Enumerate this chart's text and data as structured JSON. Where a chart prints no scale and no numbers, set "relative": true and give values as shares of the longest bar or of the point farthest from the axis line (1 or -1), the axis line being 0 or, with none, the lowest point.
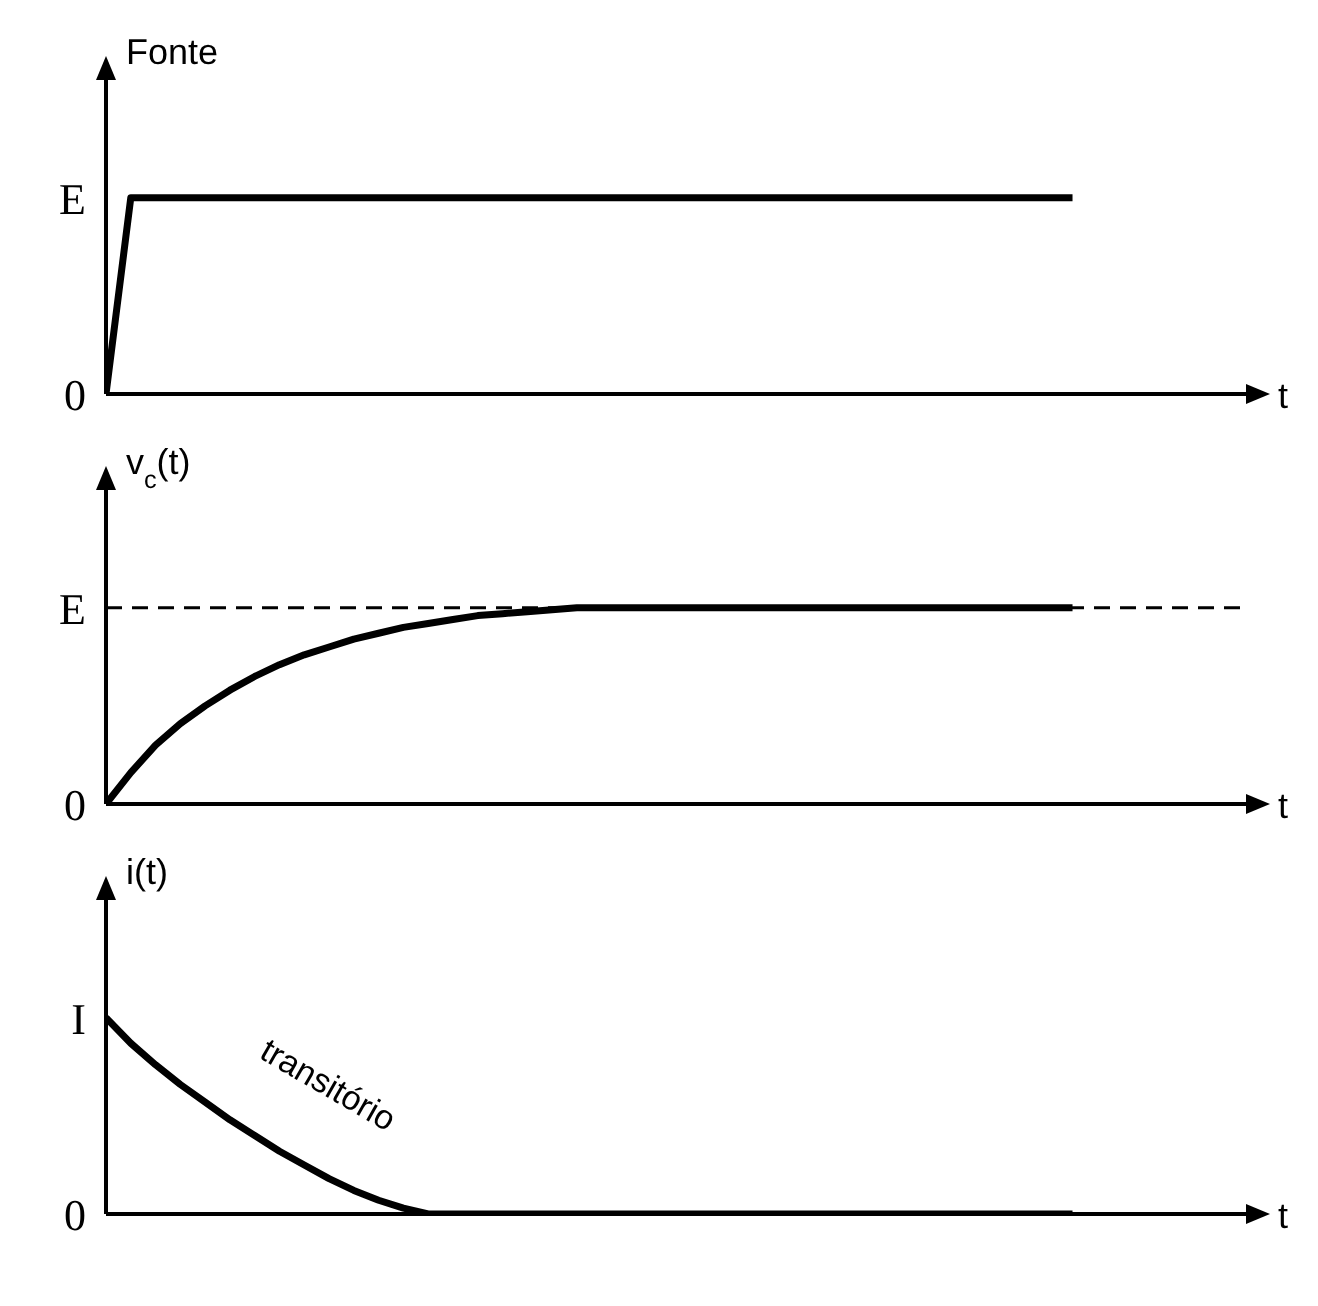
{
  "chart_data": [
    {
      "type": "line",
      "relative": true,
      "ylabel": "Fonte",
      "xlabel": "t",
      "categories": [
        null,
        null,
        null,
        null,
        null,
        null,
        null,
        null,
        null,
        null,
        null,
        null,
        null,
        null,
        null,
        null,
        null,
        null,
        null,
        null,
        null,
        null,
        null,
        null,
        null,
        null,
        null,
        null,
        null,
        null,
        null,
        null,
        null,
        null,
        null,
        null,
        null,
        null,
        null,
        null,
        null,
        null,
        null,
        null,
        null,
        null,
        null
      ],
      "values": [
        0,
        1,
        1,
        1,
        1,
        1,
        1,
        1,
        1,
        1,
        1,
        1,
        1,
        1,
        1,
        1,
        1,
        1,
        1,
        1,
        1,
        1,
        1,
        1,
        1,
        1,
        1,
        1,
        1,
        1,
        1,
        1,
        1,
        1,
        1,
        1,
        1,
        1,
        1,
        1,
        null,
        null,
        null,
        null,
        null,
        null,
        null
      ],
      "color": "#000000",
      "annotations": [
        "E",
        "0"
      ]
    },
    {
      "type": "line",
      "relative": true,
      "ylabel": "v$_{c}$(t)",
      "xlabel": "t",
      "categories": [
        null,
        null,
        null,
        null,
        null,
        null,
        null,
        null,
        null,
        null,
        null,
        null,
        null,
        null,
        null,
        null,
        null,
        null,
        null,
        null,
        null,
        null,
        null,
        null,
        null,
        null,
        null,
        null,
        null,
        null,
        null,
        null,
        null,
        null,
        null,
        null,
        null,
        null,
        null,
        null,
        null,
        null,
        null,
        null,
        null,
        null,
        null
      ],
      "values": [
        0,
        0.16,
        0.3,
        0.41,
        0.5,
        0.58,
        0.65,
        0.71,
        0.76,
        0.8,
        0.84,
        0.87,
        0.9,
        0.92,
        0.94,
        0.96,
        0.97,
        0.98,
        0.99,
        1,
        1,
        1,
        1,
        1,
        1,
        1,
        1,
        1,
        1,
        1,
        1,
        1,
        1,
        1,
        1,
        1,
        1,
        1,
        1,
        1,
        null,
        null,
        null,
        null,
        null,
        null,
        null
      ],
      "color": "#000000",
      "ref_lines": [
        {
          "axis": "y",
          "value": 1,
          "line_style": "dashed",
          "color": "#000000"
        }
      ],
      "annotations": [
        "E",
        "0"
      ]
    },
    {
      "type": "line",
      "relative": true,
      "ylabel": "i(t)",
      "xlabel": "t",
      "categories": [
        null,
        null,
        null,
        null,
        null,
        null,
        null,
        null,
        null,
        null,
        null,
        null,
        null,
        null,
        null,
        null,
        null,
        null,
        null,
        null,
        null,
        null,
        null,
        null,
        null,
        null,
        null,
        null,
        null,
        null,
        null,
        null,
        null,
        null,
        null,
        null,
        null,
        null,
        null,
        null,
        null,
        null,
        null,
        null,
        null,
        null,
        null
      ],
      "values": [
        1,
        0.87,
        0.76,
        0.66,
        0.57,
        0.48,
        0.4,
        0.32,
        0.25,
        0.18,
        0.12,
        0.07,
        0.03,
        0,
        0,
        0,
        0,
        0,
        0,
        0,
        0,
        0,
        0,
        0,
        0,
        0,
        0,
        0,
        0,
        0,
        0,
        0,
        0,
        0,
        0,
        0,
        0,
        0,
        0,
        0,
        null,
        null,
        null,
        null,
        null,
        null,
        null
      ],
      "color": "#000000",
      "annotations": [
        "I",
        "0",
        "transitório"
      ]
    }
  ]
}
